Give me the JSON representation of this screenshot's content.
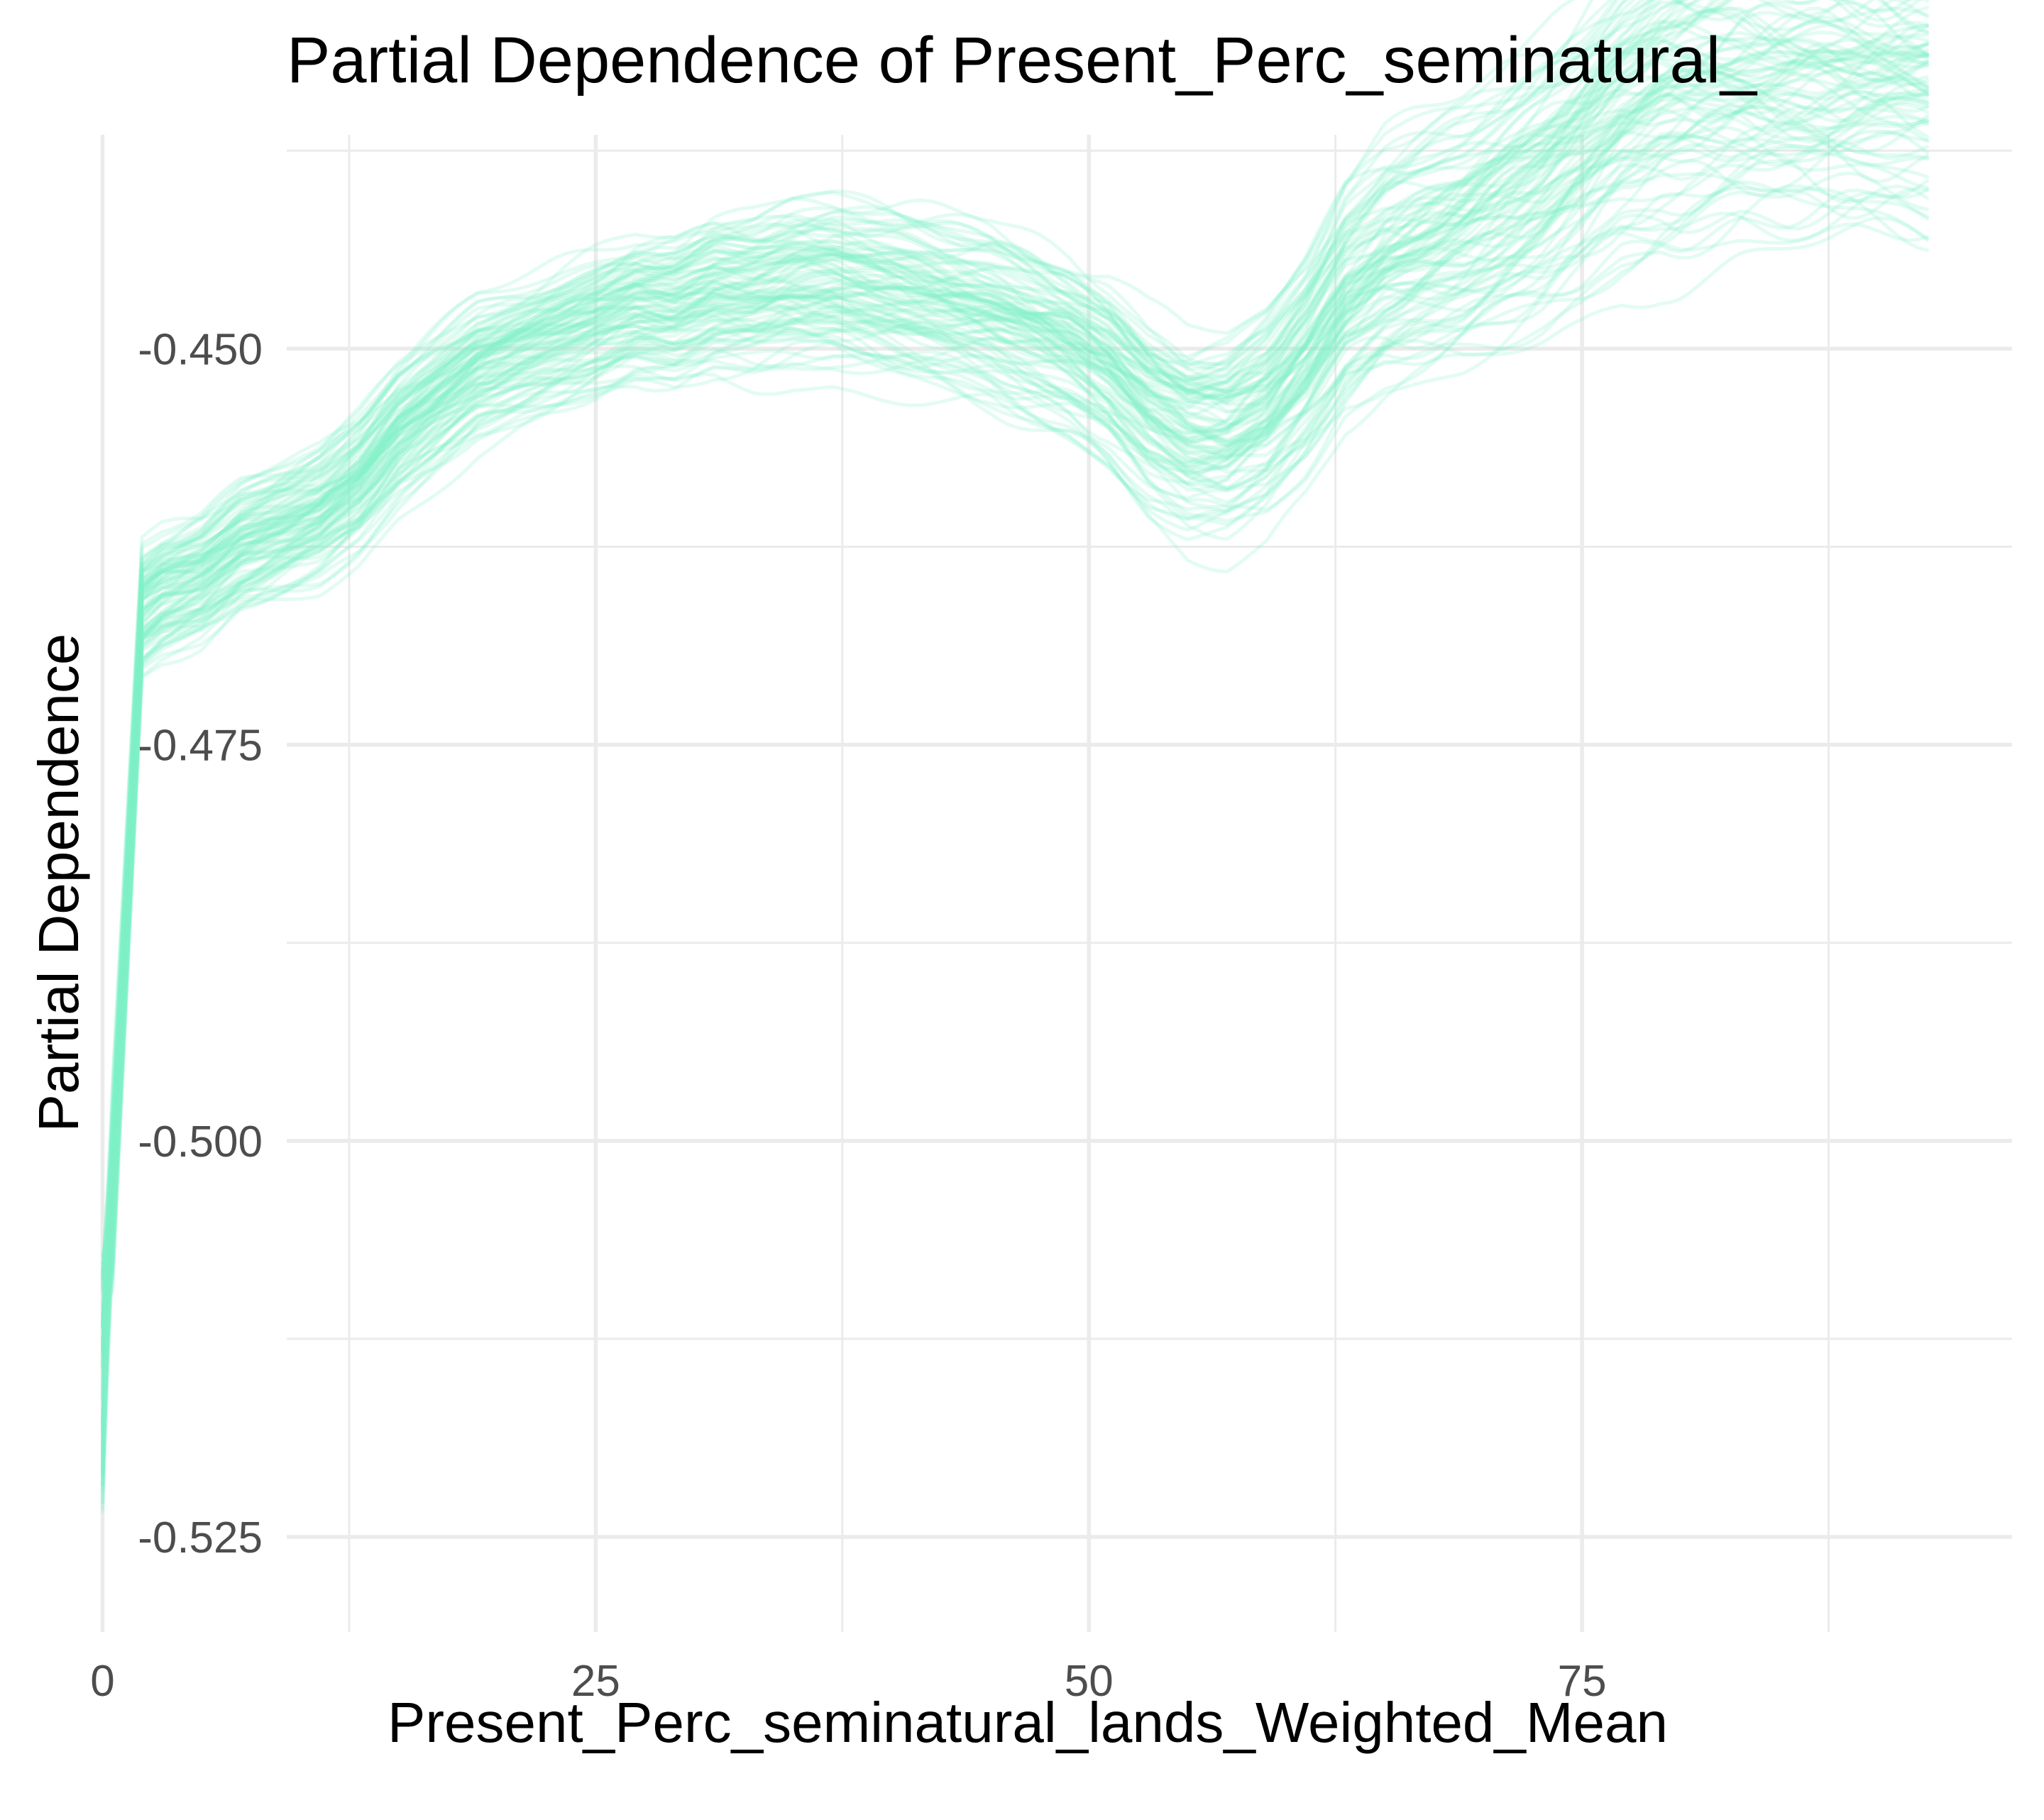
{
  "chart_data": {
    "type": "line",
    "title": "Partial Dependence of Present_Perc_seminatural_",
    "xlabel": "Present_Perc_seminatural_lands_Weighted_Mean",
    "ylabel": "Partial Dependence",
    "xlim": [
      -5.2,
      96.8
    ],
    "ylim": [
      -0.531,
      -0.4365
    ],
    "x_ticks": [
      0,
      25,
      50,
      75
    ],
    "x_tick_labels": [
      "0",
      "25",
      "50",
      "75"
    ],
    "x_minor_ticks": [
      12.5,
      37.5,
      62.5,
      87.5
    ],
    "y_ticks": [
      -0.525,
      -0.5,
      -0.475,
      -0.45
    ],
    "y_tick_labels": [
      "-0.525",
      "-0.500",
      "-0.475",
      "-0.450"
    ],
    "y_minor_ticks": [
      -0.5125,
      -0.4875,
      -0.4625,
      -0.4375
    ],
    "grid": true,
    "legend": "none",
    "line_color": "#7ff0c8",
    "line_opacity": 0.22,
    "num_series": 100,
    "mean_curve": {
      "x": [
        0,
        2,
        3,
        5,
        7,
        9,
        11,
        13,
        15,
        17,
        19,
        21,
        23,
        25,
        27,
        29,
        31,
        33,
        35,
        37,
        39,
        41,
        43,
        45,
        47,
        49,
        51,
        53,
        55,
        57,
        59,
        61,
        63,
        65,
        67,
        69,
        71,
        73,
        75,
        77,
        79,
        81,
        83,
        85,
        87,
        89,
        92.5
      ],
      "y": [
        -0.5155,
        -0.4665,
        -0.4655,
        -0.4645,
        -0.4625,
        -0.4615,
        -0.4605,
        -0.4585,
        -0.4555,
        -0.4535,
        -0.4515,
        -0.4505,
        -0.4495,
        -0.4485,
        -0.4475,
        -0.4475,
        -0.4465,
        -0.4465,
        -0.446,
        -0.446,
        -0.4465,
        -0.447,
        -0.4475,
        -0.448,
        -0.449,
        -0.45,
        -0.4515,
        -0.454,
        -0.4555,
        -0.4555,
        -0.454,
        -0.451,
        -0.447,
        -0.445,
        -0.444,
        -0.443,
        -0.4415,
        -0.44,
        -0.438,
        -0.4355,
        -0.434,
        -0.4335,
        -0.433,
        -0.433,
        -0.433,
        -0.433,
        -0.433
      ]
    },
    "spread_curve": {
      "x": [
        0,
        2,
        10,
        20,
        30,
        40,
        50,
        55,
        60,
        65,
        75,
        80,
        92.5
      ],
      "y": [
        0.004,
        0.0025,
        0.0025,
        0.0025,
        0.0028,
        0.003,
        0.0032,
        0.0034,
        0.0036,
        0.0042,
        0.0048,
        0.0052,
        0.0052
      ]
    }
  }
}
